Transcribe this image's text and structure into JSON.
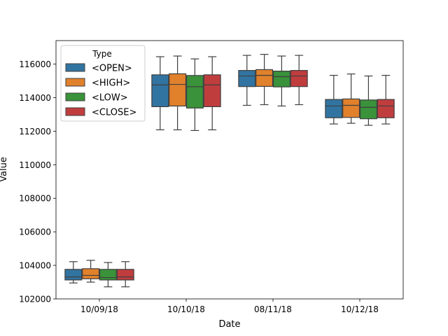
{
  "chart_data": {
    "type": "box",
    "title": "",
    "xlabel": "Date",
    "ylabel": "Value",
    "ylim": [
      102000,
      117400
    ],
    "yticks": [
      102000,
      104000,
      106000,
      108000,
      110000,
      112000,
      114000,
      116000
    ],
    "grid": false,
    "legend": {
      "title": "Type",
      "placement": "top-left"
    },
    "categories": [
      "10/09/18",
      "10/10/18",
      "08/11/18",
      "10/12/18"
    ],
    "series": [
      {
        "name": "<OPEN>",
        "color": "#3274a1",
        "boxes": [
          {
            "min": 102950,
            "q1": 103130,
            "median": 103310,
            "q3": 103760,
            "max": 104220
          },
          {
            "min": 112080,
            "q1": 113460,
            "median": 114760,
            "q3": 115360,
            "max": 116440
          },
          {
            "min": 113540,
            "q1": 114660,
            "median": 115290,
            "q3": 115620,
            "max": 116520
          },
          {
            "min": 112430,
            "q1": 112800,
            "median": 113500,
            "q3": 113890,
            "max": 115330
          }
        ]
      },
      {
        "name": "<HIGH>",
        "color": "#e1812c",
        "boxes": [
          {
            "min": 103000,
            "q1": 103200,
            "median": 103400,
            "q3": 103800,
            "max": 104300
          },
          {
            "min": 112080,
            "q1": 113500,
            "median": 114790,
            "q3": 115420,
            "max": 116480
          },
          {
            "min": 113580,
            "q1": 114670,
            "median": 115330,
            "q3": 115670,
            "max": 116580
          },
          {
            "min": 112470,
            "q1": 112820,
            "median": 113540,
            "q3": 113920,
            "max": 115410
          }
        ]
      },
      {
        "name": "<LOW>",
        "color": "#3a923a",
        "boxes": [
          {
            "min": 102720,
            "q1": 103130,
            "median": 103270,
            "q3": 103760,
            "max": 104170
          },
          {
            "min": 112040,
            "q1": 113380,
            "median": 114650,
            "q3": 115320,
            "max": 116310
          },
          {
            "min": 113500,
            "q1": 114640,
            "median": 115250,
            "q3": 115580,
            "max": 116480
          },
          {
            "min": 112350,
            "q1": 112740,
            "median": 113420,
            "q3": 113860,
            "max": 115290
          }
        ]
      },
      {
        "name": "<CLOSE>",
        "color": "#c03d3e",
        "boxes": [
          {
            "min": 102720,
            "q1": 103130,
            "median": 103310,
            "q3": 103760,
            "max": 104220
          },
          {
            "min": 112080,
            "q1": 113460,
            "median": 114760,
            "q3": 115360,
            "max": 116440
          },
          {
            "min": 113580,
            "q1": 114660,
            "median": 115290,
            "q3": 115620,
            "max": 116520
          },
          {
            "min": 112430,
            "q1": 112800,
            "median": 113500,
            "q3": 113890,
            "max": 115330
          }
        ]
      }
    ]
  }
}
